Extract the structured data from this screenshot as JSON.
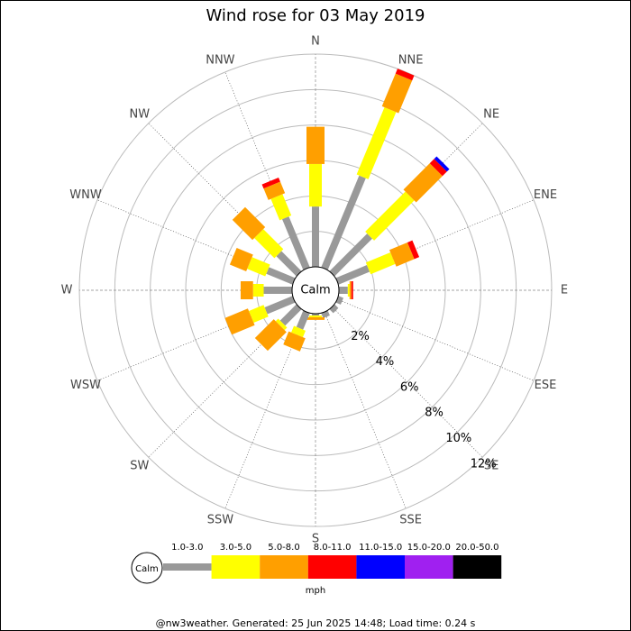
{
  "chart_data": {
    "type": "windrose",
    "title": "Wind rose for 03 May 2019",
    "categories": [
      "N",
      "NNE",
      "NE",
      "ENE",
      "E",
      "ESE",
      "SE",
      "SSE",
      "S",
      "SSW",
      "SW",
      "WSW",
      "W",
      "WNW",
      "NW",
      "NNW"
    ],
    "calm_label": "Calm",
    "unit": "mph",
    "footer": "@nw3weather. Generated: 25 Jun 2025 14:48; Load time: 0.24 s",
    "rlim": [
      0,
      12
    ],
    "rticks": [
      {
        "value": 2,
        "label": "2%"
      },
      {
        "value": 4,
        "label": "4%"
      },
      {
        "value": 6,
        "label": "6%"
      },
      {
        "value": 8,
        "label": "8%"
      },
      {
        "value": 10,
        "label": "10%"
      },
      {
        "value": 12,
        "label": "12%"
      }
    ],
    "series": [
      {
        "name": "1.0-3.0",
        "color": "#999999",
        "values": [
          3.4,
          5.6,
          3.0,
          1.9,
          0.5,
          0.3,
          0.3,
          0.3,
          0.1,
          1.0,
          1.3,
          1.7,
          1.6,
          1.6,
          1.6,
          3.1
        ]
      },
      {
        "name": "3.0-5.0",
        "color": "#ffff00",
        "values": [
          2.4,
          4.1,
          3.2,
          1.5,
          0.1,
          0,
          0,
          0,
          0.1,
          0.4,
          0.2,
          0.9,
          0.6,
          1.1,
          1.6,
          1.3
        ]
      },
      {
        "name": "5.0-8.0",
        "color": "#ff9f00",
        "values": [
          2.1,
          2.0,
          2.1,
          1.1,
          0.1,
          0,
          0,
          0,
          0.15,
          0.8,
          1.5,
          1.4,
          0.7,
          1.0,
          1.6,
          0.7
        ]
      },
      {
        "name": "8.0-11.0",
        "color": "#ff0000",
        "values": [
          0,
          0.3,
          0.35,
          0.3,
          0.1,
          0,
          0,
          0,
          0,
          0,
          0,
          0,
          0,
          0,
          0,
          0.25
        ]
      },
      {
        "name": "11.0-15.0",
        "color": "#0000ff",
        "values": [
          0,
          0,
          0.2,
          0,
          0,
          0,
          0,
          0,
          0,
          0,
          0,
          0,
          0,
          0,
          0,
          0
        ]
      },
      {
        "name": "15.0-20.0",
        "color": "#a020f0",
        "values": [
          0,
          0,
          0,
          0,
          0,
          0,
          0,
          0,
          0,
          0,
          0,
          0,
          0,
          0,
          0,
          0
        ]
      },
      {
        "name": "20.0-50.0",
        "color": "#000000",
        "values": [
          0,
          0,
          0,
          0,
          0,
          0,
          0,
          0,
          0,
          0,
          0,
          0,
          0,
          0,
          0,
          0
        ]
      }
    ]
  }
}
